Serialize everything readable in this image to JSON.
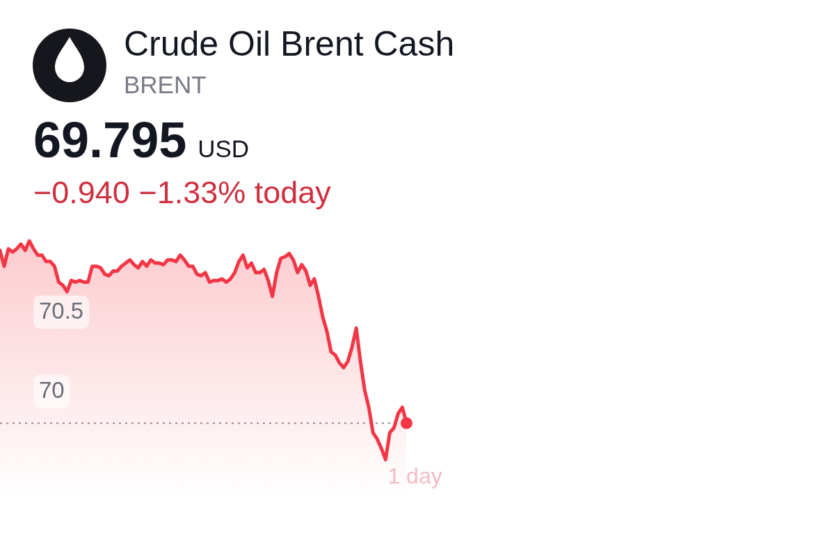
{
  "chart_data": {
    "type": "area",
    "title": "Crude Oil Brent Cash",
    "subtitle": "BRENT",
    "annotations": [
      "69.795",
      "USD",
      "−0.940 −1.33% today",
      "1 day"
    ],
    "categories": [
      null,
      null,
      null,
      null,
      null,
      null,
      null,
      null,
      null,
      null,
      null,
      null,
      null,
      null,
      null,
      null,
      null,
      null,
      null,
      null,
      null,
      null,
      null,
      null,
      null,
      null,
      null,
      null,
      null,
      null,
      null,
      null,
      null,
      null,
      null,
      null,
      null,
      null,
      null,
      null,
      null,
      null,
      null,
      null,
      null,
      null,
      null,
      null,
      null,
      null,
      null,
      null,
      null,
      null,
      null,
      null,
      null,
      null,
      null,
      null,
      null,
      null,
      null,
      null,
      null,
      null,
      null,
      null,
      null,
      null,
      null,
      null,
      null,
      null,
      null,
      null,
      null,
      null,
      null,
      null,
      null,
      null,
      null,
      null,
      null,
      null,
      null,
      null,
      null,
      null,
      null,
      null,
      null,
      null,
      null,
      null,
      null,
      null,
      null,
      null,
      null,
      null,
      null,
      null,
      null,
      null,
      null,
      null,
      null,
      null,
      null,
      null,
      null,
      null,
      null,
      null,
      null,
      null,
      null,
      null,
      null,
      null,
      null,
      null,
      null,
      null,
      null,
      null,
      null,
      null,
      null,
      null,
      null,
      null,
      null,
      null,
      null,
      null,
      null,
      null,
      null,
      null,
      null,
      null,
      null,
      null,
      null,
      null,
      null,
      null,
      null,
      null,
      null,
      null,
      null,
      null,
      null,
      null,
      null,
      null,
      null,
      null,
      null,
      null,
      null,
      null,
      null,
      null,
      null,
      null,
      null,
      null,
      null,
      null,
      null,
      null,
      null,
      null,
      null,
      null,
      null,
      null,
      null,
      null,
      null,
      null,
      null,
      null,
      null,
      null,
      null,
      null,
      null,
      null,
      null,
      null,
      null,
      null,
      null,
      null
    ],
    "values": [
      70.89,
      70.79,
      70.9,
      70.88,
      70.9,
      70.93,
      70.89,
      70.95,
      70.9,
      70.86,
      70.86,
      70.82,
      70.82,
      70.79,
      70.69,
      70.67,
      70.63,
      70.7,
      70.69,
      70.7,
      70.69,
      70.69,
      70.79,
      70.79,
      70.78,
      70.74,
      70.73,
      70.76,
      70.76,
      70.79,
      70.81,
      70.83,
      70.8,
      70.78,
      70.82,
      70.79,
      70.83,
      70.81,
      70.81,
      70.8,
      70.83,
      70.83,
      70.82,
      70.86,
      70.83,
      70.79,
      70.79,
      70.74,
      70.73,
      70.75,
      70.69,
      70.7,
      70.7,
      70.71,
      70.69,
      70.71,
      70.75,
      70.82,
      70.86,
      70.78,
      70.81,
      70.75,
      70.75,
      70.77,
      70.7,
      70.6,
      70.75,
      70.84,
      70.85,
      70.87,
      70.83,
      70.75,
      70.8,
      70.76,
      70.67,
      70.71,
      70.6,
      70.47,
      70.38,
      70.25,
      70.23,
      70.18,
      70.15,
      70.19,
      70.28,
      70.4,
      70.19,
      70.01,
      69.9,
      69.74,
      69.7,
      69.64,
      69.57,
      69.74,
      69.77,
      69.86,
      69.9,
      69.8,
      null,
      null,
      null,
      null,
      null,
      null,
      null,
      null,
      null,
      null,
      null,
      null,
      null,
      null,
      null,
      null,
      null,
      null,
      null,
      null,
      null,
      null,
      null,
      null,
      null,
      null,
      null,
      null,
      null,
      null,
      null,
      null,
      null,
      null,
      null,
      null,
      null,
      null,
      null,
      null,
      null,
      null,
      null,
      null,
      null,
      null,
      null,
      null,
      null,
      null,
      null,
      null,
      null,
      null,
      null,
      null,
      null,
      null,
      null,
      null,
      null,
      null,
      null,
      null,
      null,
      null,
      null,
      null,
      null,
      null,
      null,
      null,
      null,
      null,
      null,
      null,
      null,
      null,
      null,
      null,
      null,
      null,
      null,
      null,
      null,
      null,
      null,
      null,
      null,
      null,
      null,
      null,
      null,
      null,
      null,
      null,
      null,
      null,
      null,
      null,
      null,
      null
    ],
    "color": "#f23645",
    "ylim": [
      69.05,
      72.47
    ],
    "yticks": [
      70,
      70.5
    ],
    "ref_lines": [
      {
        "axis": "y",
        "value": 69.8,
        "color": "#8a8d96",
        "line_style": "dotted"
      }
    ],
    "grid": false,
    "legend": false
  }
}
